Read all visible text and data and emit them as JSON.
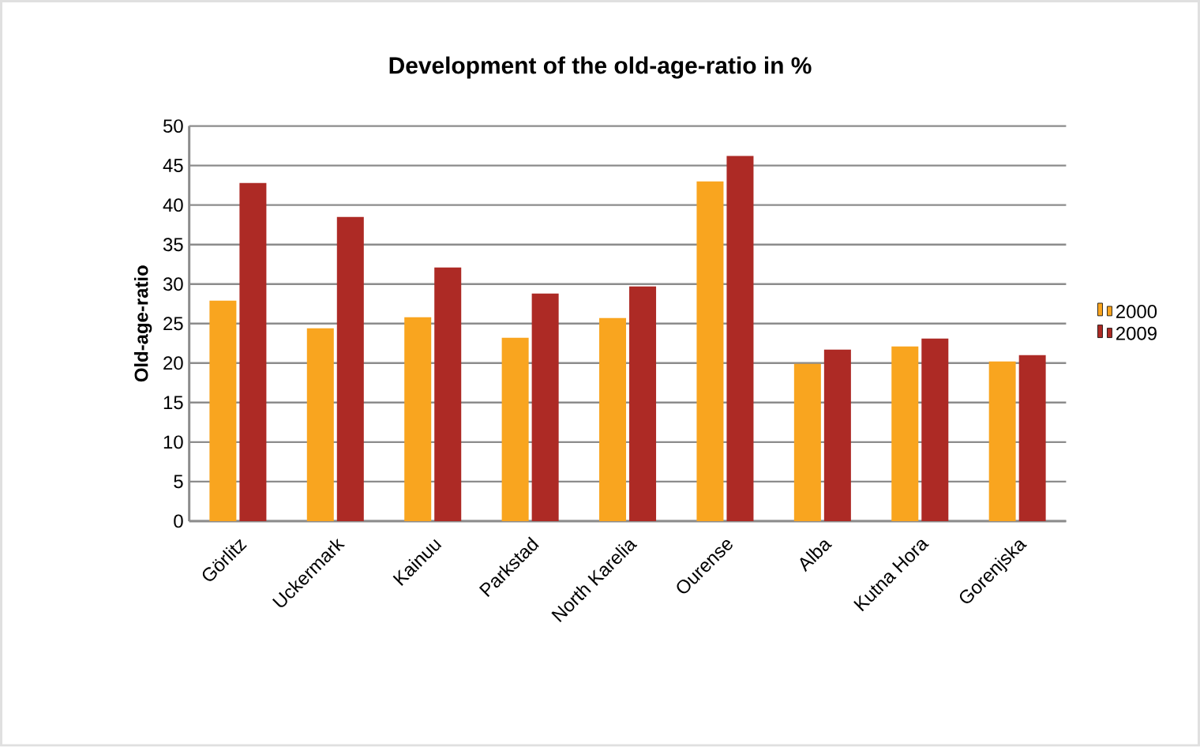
{
  "chart_data": {
    "type": "bar",
    "title": "Development of the old-age-ratio in %",
    "ylabel": "Old-age-ratio",
    "categories": [
      "Görlitz",
      "Uckermark",
      "Kainuu",
      "Parkstad",
      "North Karelia",
      "Ourense",
      "Alba",
      "Kutna Hora",
      "Gorenjska"
    ],
    "series": [
      {
        "name": "2000",
        "color": "#f9a51f",
        "values": [
          27.9,
          24.4,
          25.8,
          23.2,
          25.7,
          43.0,
          19.9,
          22.1,
          20.2
        ]
      },
      {
        "name": "2009",
        "color": "#ad2a25",
        "values": [
          42.8,
          38.5,
          32.1,
          28.8,
          29.7,
          46.2,
          21.7,
          23.1,
          21.0
        ]
      }
    ],
    "ylim": [
      0,
      50
    ],
    "yticks": [
      0,
      5,
      10,
      15,
      20,
      25,
      30,
      35,
      40,
      45,
      50
    ],
    "grid": "y",
    "legend": "right"
  }
}
